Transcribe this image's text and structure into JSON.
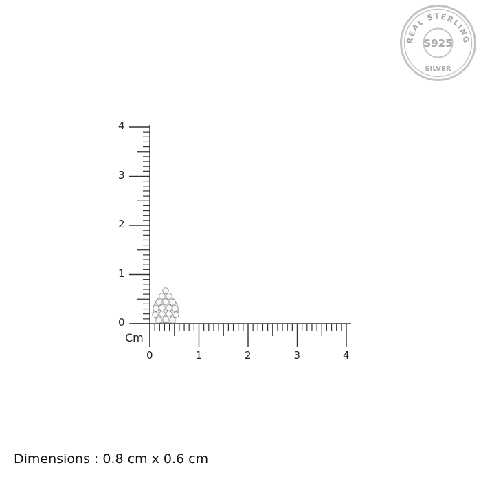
{
  "seal": {
    "top_text": "REAL STERLING",
    "center_text": "S925",
    "bottom_text": "SILVER",
    "color": "#b8b8b8"
  },
  "ruler": {
    "unit_label": "Cm",
    "x_ticks": [
      "0",
      "1",
      "2",
      "3",
      "4"
    ],
    "y_ticks": [
      "0",
      "1",
      "2",
      "3",
      "4"
    ],
    "range_cm": [
      0,
      4
    ],
    "minor_step_cm": 0.1
  },
  "product": {
    "shape": "pear",
    "width_cm": 0.6,
    "height_cm": 0.8
  },
  "dimensions_text": "Dimensions : 0.8 cm x 0.6 cm"
}
